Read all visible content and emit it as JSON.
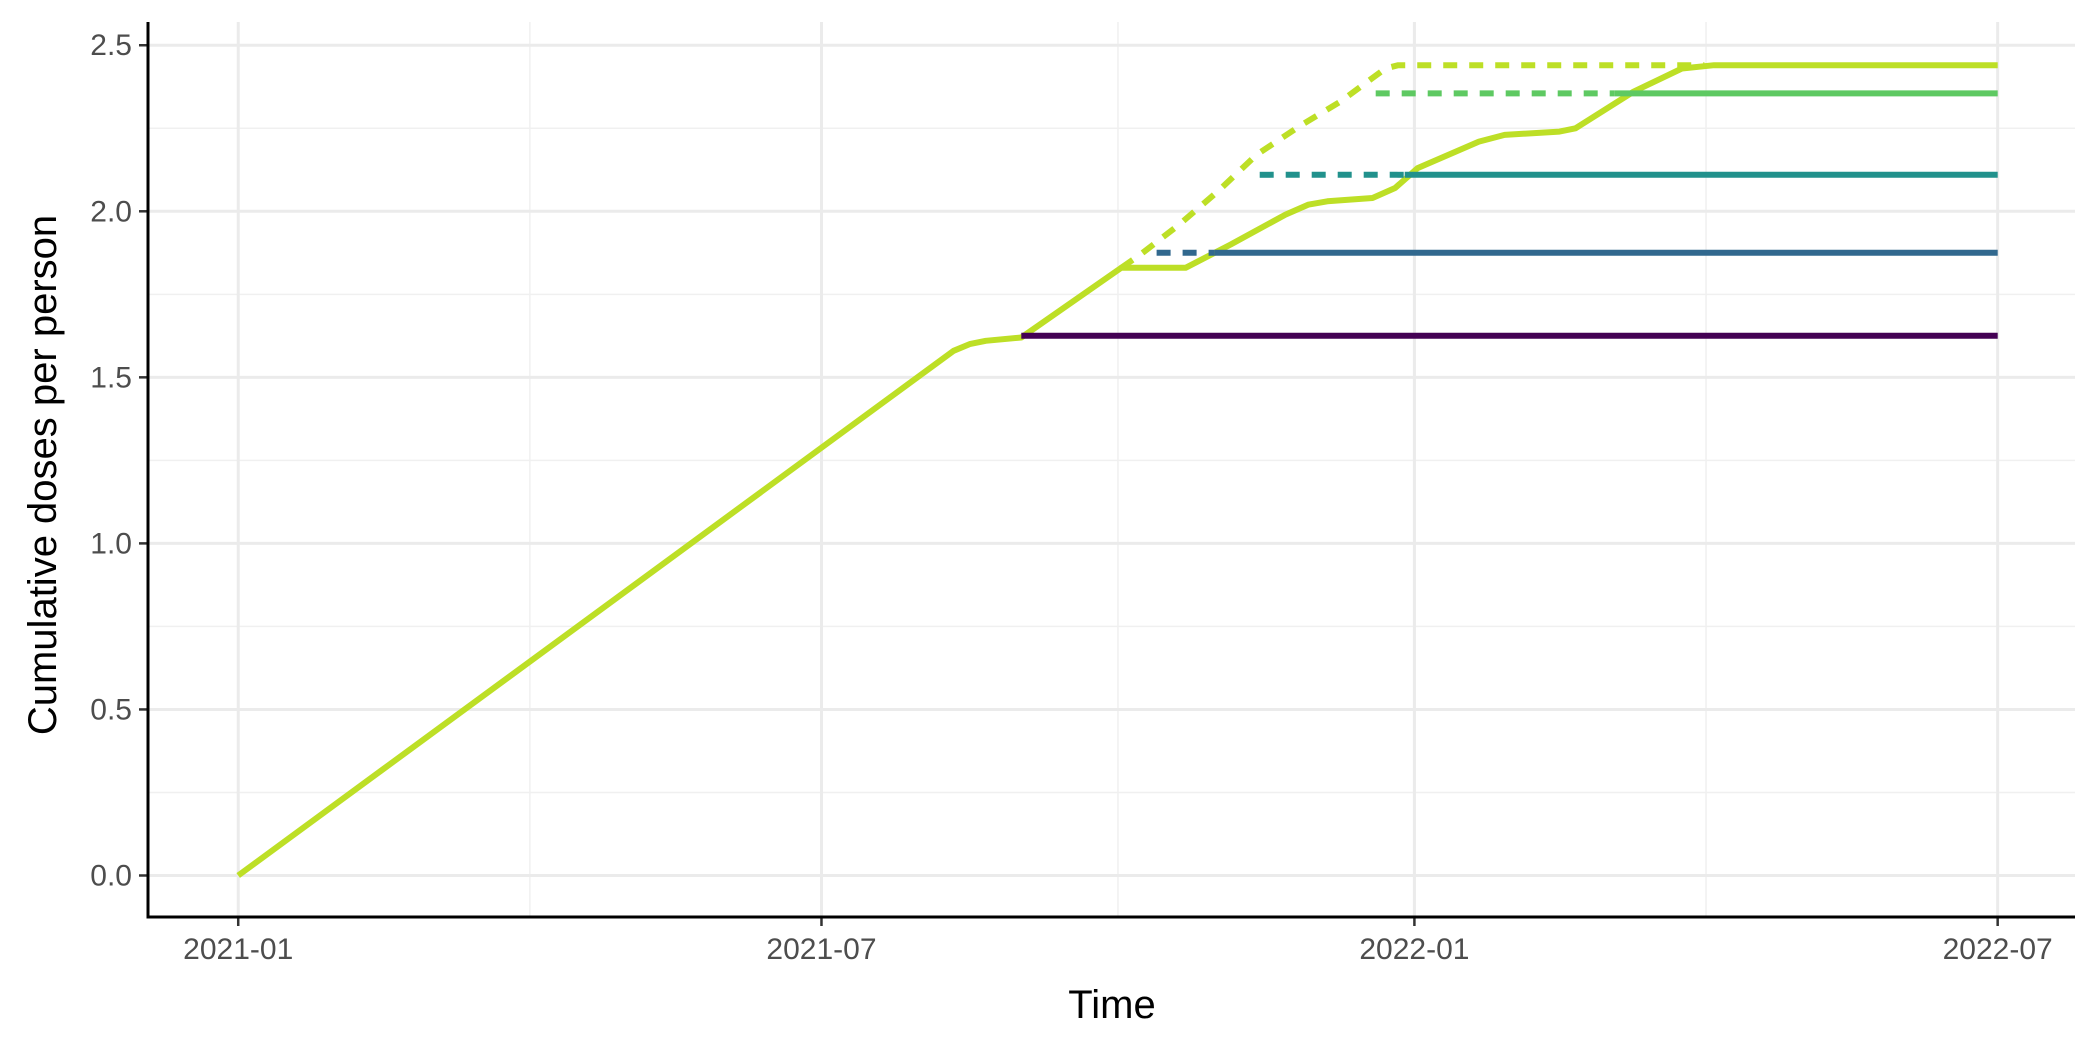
{
  "chart_data": {
    "type": "line",
    "title": "",
    "xlabel": "Time",
    "ylabel": "Cumulative doses per person",
    "x_ticks": [
      "2021-01",
      "2021-07",
      "2022-01",
      "2022-07"
    ],
    "x_tick_values": [
      0,
      181,
      365,
      546
    ],
    "x_range_days": [
      -28,
      570
    ],
    "x_origin": "2021-01-01",
    "y_ticks": [
      "0.0",
      "0.5",
      "1.0",
      "1.5",
      "2.0",
      "2.5"
    ],
    "y_tick_values": [
      0,
      0.5,
      1.0,
      1.5,
      2.0,
      2.5
    ],
    "ylim": [
      -0.125,
      2.57
    ],
    "grid": true,
    "series": [
      {
        "name": "main",
        "color": "#bddf26",
        "style": "solid",
        "points": [
          [
            0,
            0
          ],
          [
            222,
            1.58
          ],
          [
            227,
            1.6
          ],
          [
            232,
            1.61
          ],
          [
            243,
            1.62
          ],
          [
            274,
            1.83
          ],
          [
            294,
            1.83
          ],
          [
            308,
            1.9
          ],
          [
            325,
            1.99
          ],
          [
            332,
            2.02
          ],
          [
            338,
            2.03
          ],
          [
            352,
            2.04
          ],
          [
            359,
            2.07
          ],
          [
            366,
            2.13
          ],
          [
            385,
            2.21
          ],
          [
            393,
            2.23
          ],
          [
            410,
            2.24
          ],
          [
            415,
            2.25
          ],
          [
            433,
            2.36
          ],
          [
            448,
            2.43
          ],
          [
            458,
            2.44
          ],
          [
            546,
            2.44
          ]
        ]
      },
      {
        "name": "level-1",
        "color": "#440154",
        "style": "solid",
        "points": [
          [
            243,
            1.625
          ],
          [
            546,
            1.625
          ]
        ]
      },
      {
        "name": "level-2-dashed",
        "color": "#31688e",
        "style": "dashed",
        "points": [
          [
            285,
            1.875
          ],
          [
            303,
            1.875
          ]
        ]
      },
      {
        "name": "level-2",
        "color": "#31688e",
        "style": "solid",
        "points": [
          [
            303,
            1.875
          ],
          [
            546,
            1.875
          ]
        ]
      },
      {
        "name": "level-3-dashed",
        "color": "#21918c",
        "style": "dashed",
        "points": [
          [
            317,
            2.11
          ],
          [
            362,
            2.11
          ]
        ]
      },
      {
        "name": "level-3",
        "color": "#21918c",
        "style": "solid",
        "points": [
          [
            362,
            2.11
          ],
          [
            546,
            2.11
          ]
        ]
      },
      {
        "name": "level-4-dashed",
        "color": "#5ec962",
        "style": "dashed",
        "points": [
          [
            353,
            2.355
          ],
          [
            427,
            2.355
          ]
        ]
      },
      {
        "name": "level-4",
        "color": "#5ec962",
        "style": "solid",
        "points": [
          [
            427,
            2.355
          ],
          [
            546,
            2.355
          ]
        ]
      },
      {
        "name": "main-dashed",
        "color": "#bddf26",
        "style": "dashed",
        "points": [
          [
            274,
            1.83
          ],
          [
            280,
            1.87
          ],
          [
            292,
            1.96
          ],
          [
            304,
            2.06
          ],
          [
            316,
            2.17
          ],
          [
            330,
            2.26
          ],
          [
            342,
            2.33
          ],
          [
            356,
            2.43
          ],
          [
            360,
            2.44
          ],
          [
            455,
            2.44
          ]
        ]
      }
    ]
  }
}
